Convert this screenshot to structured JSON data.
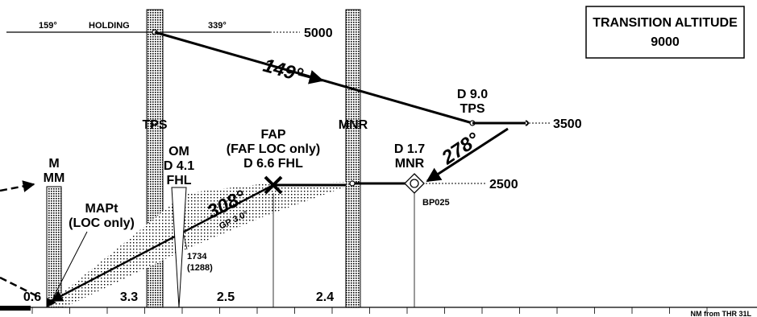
{
  "holding": {
    "inbound_course": "159°",
    "label": "HOLDING",
    "outbound_course": "339°",
    "altitude": "5000"
  },
  "transition_altitude": {
    "title": "TRANSITION ALTITUDE",
    "value": "9000"
  },
  "procedure": {
    "descent_course": "149°",
    "intermediate_course": "278°",
    "final_course": "308°",
    "glidepath": "GP 3.0°"
  },
  "fixes": {
    "tps_fix": {
      "line1": "D 9.0",
      "line2": "TPS",
      "altitude": "3500"
    },
    "tps_beacon": "TPS",
    "mnr_beacon": "MNR",
    "mnr_fix": {
      "line1": "D 1.7",
      "line2": "MNR",
      "altitude": "2500",
      "name": "BP025"
    },
    "fap": {
      "line1": "FAP",
      "line2": "(FAF LOC only)",
      "line3": "D 6.6 FHL"
    },
    "outer_marker": {
      "line1": "OM",
      "line2": "D 4.1",
      "line3": "FHL",
      "height_line1": "1734",
      "height_line2": "(1288)"
    },
    "middle_marker": {
      "line1": "M",
      "line2": "MM"
    },
    "mapt": {
      "line1": "MAPt",
      "line2": "(LOC only)"
    }
  },
  "distances": {
    "segment_1": "0.6",
    "segment_2": "3.3",
    "segment_3": "2.5",
    "segment_4": "2.4"
  },
  "scale_label": "NM from THR 31L"
}
